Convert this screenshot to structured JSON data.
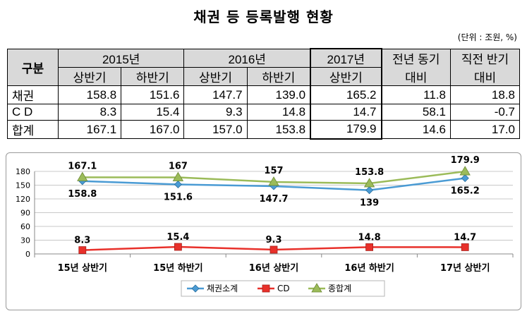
{
  "title": "채권 등 등록발행 현황",
  "unit": "(단위 : 조원, %)",
  "table": {
    "corner": "구분",
    "years": [
      "2015년",
      "2016년",
      "2017년"
    ],
    "halves": [
      "상반기",
      "하반기",
      "상반기",
      "하반기",
      "상반기"
    ],
    "change_headers": [
      {
        "line1": "전년 동기",
        "line2": "대비"
      },
      {
        "line1": "직전 반기",
        "line2": "대비"
      }
    ],
    "rows": [
      {
        "label": "채권",
        "values": [
          "158.8",
          "151.6",
          "147.7",
          "139.0",
          "165.2",
          "11.8",
          "18.8"
        ]
      },
      {
        "label": "C D",
        "values": [
          "8.3",
          "15.4",
          "9.3",
          "14.8",
          "14.7",
          "58.1",
          "-0.7"
        ]
      },
      {
        "label": "합계",
        "values": [
          "167.1",
          "167.0",
          "157.0",
          "153.8",
          "179.9",
          "14.6",
          "17.0"
        ]
      }
    ]
  },
  "chart_data": {
    "type": "line",
    "categories": [
      "15년 상반기",
      "15년 하반기",
      "16년 상반기",
      "16년 하반기",
      "17년 상반기"
    ],
    "ylim": [
      0,
      180
    ],
    "yticks": [
      "0",
      "30",
      "60",
      "90",
      "120",
      "150",
      "180"
    ],
    "grid": true,
    "legend": "bottom",
    "series": [
      {
        "name": "채권소계",
        "values": [
          158.8,
          151.6,
          147.7,
          139,
          165.2
        ],
        "labels": [
          "158.8",
          "151.6",
          "147.7",
          "139",
          "165.2"
        ],
        "color": "#4a9bd4",
        "marker": "diamond"
      },
      {
        "name": "CD",
        "values": [
          8.3,
          15.4,
          9.3,
          14.8,
          14.7
        ],
        "labels": [
          "8.3",
          "15.4",
          "9.3",
          "14.8",
          "14.7"
        ],
        "color": "#e8302a",
        "marker": "square"
      },
      {
        "name": "종합계",
        "values": [
          167.1,
          167,
          157,
          153.8,
          179.9
        ],
        "labels": [
          "167.1",
          "167",
          "157",
          "153.8",
          "179.9"
        ],
        "color": "#9bbb59",
        "marker": "triangle"
      }
    ]
  }
}
